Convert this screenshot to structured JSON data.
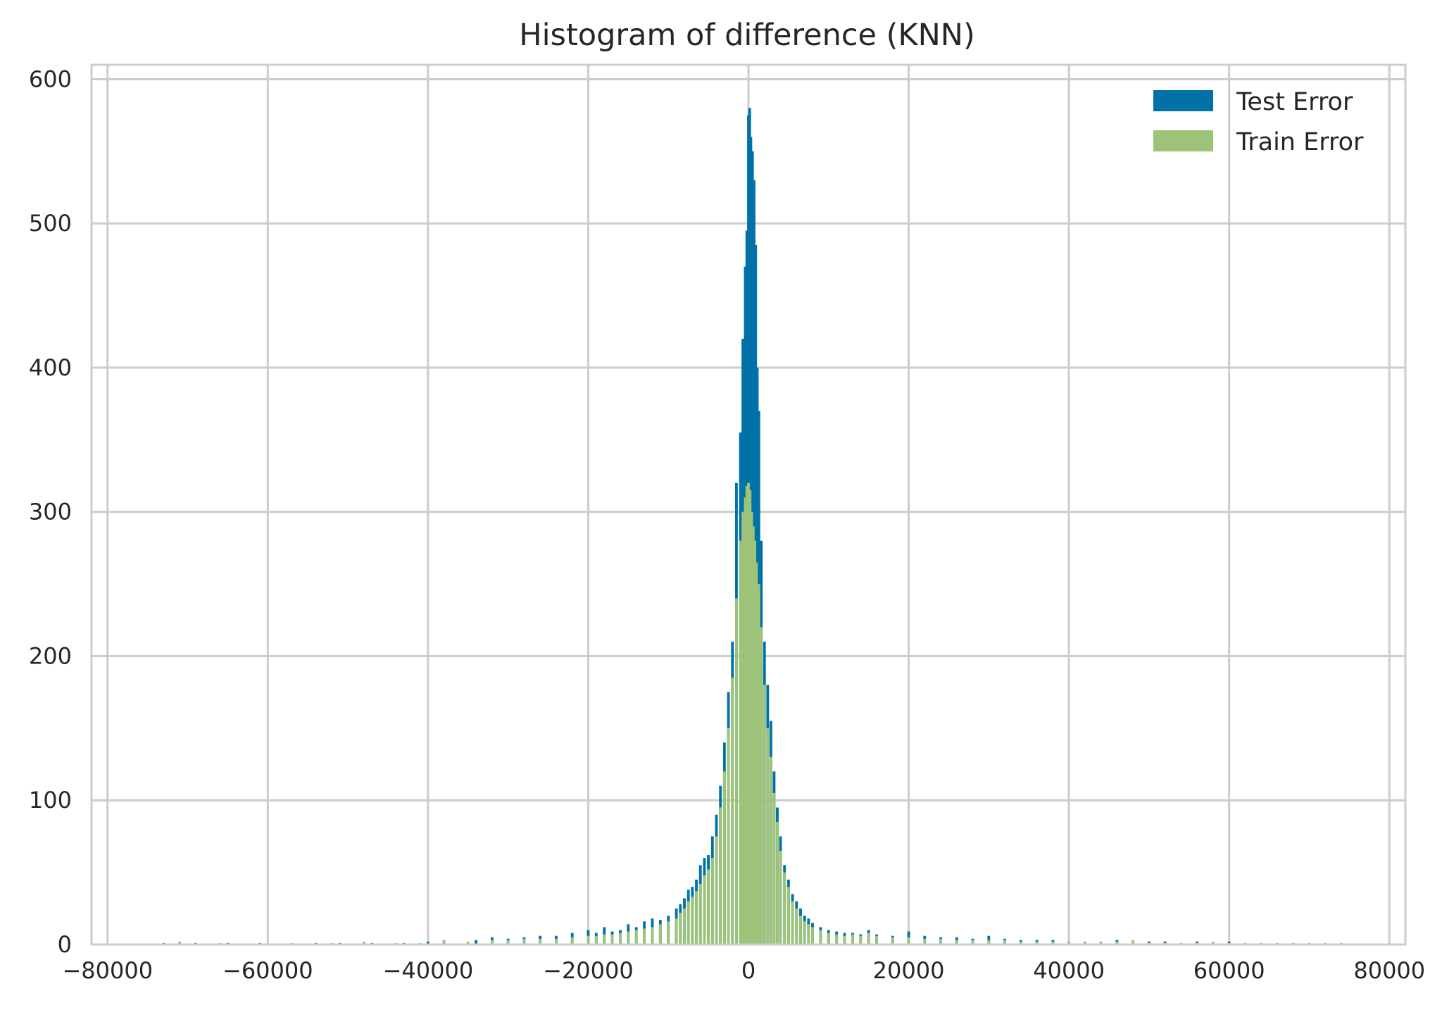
{
  "chart_data": {
    "type": "bar",
    "title": "Histogram of difference (KNN)",
    "xlabel": "",
    "ylabel": "",
    "xlim": [
      -82000,
      82000
    ],
    "ylim": [
      0,
      610
    ],
    "x_ticks": [
      -80000,
      -60000,
      -40000,
      -20000,
      0,
      20000,
      40000,
      60000,
      80000
    ],
    "x_tick_labels": [
      "−80000",
      "−60000",
      "−40000",
      "−20000",
      "0",
      "20000",
      "40000",
      "60000",
      "80000"
    ],
    "y_ticks": [
      0,
      100,
      200,
      300,
      400,
      500,
      600
    ],
    "y_tick_labels": [
      "0",
      "100",
      "200",
      "300",
      "400",
      "500",
      "600"
    ],
    "grid": true,
    "legend_position": "top-right",
    "series": [
      {
        "name": "Test Error",
        "color": "#0072a7",
        "points": [
          [
            -73000,
            1
          ],
          [
            -69000,
            1
          ],
          [
            -65000,
            1
          ],
          [
            -61000,
            1
          ],
          [
            -54000,
            1
          ],
          [
            -51000,
            1
          ],
          [
            -47000,
            1
          ],
          [
            -43000,
            1
          ],
          [
            -40000,
            2
          ],
          [
            -38000,
            3
          ],
          [
            -34000,
            3
          ],
          [
            -32000,
            5
          ],
          [
            -30000,
            4
          ],
          [
            -28000,
            5
          ],
          [
            -26000,
            6
          ],
          [
            -24000,
            6
          ],
          [
            -22000,
            8
          ],
          [
            -20000,
            10
          ],
          [
            -19000,
            8
          ],
          [
            -18000,
            12
          ],
          [
            -17000,
            9
          ],
          [
            -16000,
            10
          ],
          [
            -15000,
            14
          ],
          [
            -14000,
            12
          ],
          [
            -13000,
            16
          ],
          [
            -12000,
            18
          ],
          [
            -11000,
            17
          ],
          [
            -10000,
            20
          ],
          [
            -9000,
            25
          ],
          [
            -8500,
            28
          ],
          [
            -8000,
            32
          ],
          [
            -7500,
            38
          ],
          [
            -7000,
            40
          ],
          [
            -6500,
            45
          ],
          [
            -6000,
            55
          ],
          [
            -5500,
            60
          ],
          [
            -5000,
            62
          ],
          [
            -4500,
            75
          ],
          [
            -4000,
            90
          ],
          [
            -3500,
            110
          ],
          [
            -3000,
            140
          ],
          [
            -2500,
            175
          ],
          [
            -2000,
            210
          ],
          [
            -1500,
            320
          ],
          [
            -1000,
            355
          ],
          [
            -700,
            420
          ],
          [
            -400,
            470
          ],
          [
            -200,
            495
          ],
          [
            0,
            575
          ],
          [
            150,
            580
          ],
          [
            300,
            560
          ],
          [
            500,
            550
          ],
          [
            700,
            530
          ],
          [
            900,
            485
          ],
          [
            1100,
            400
          ],
          [
            1300,
            370
          ],
          [
            1600,
            280
          ],
          [
            2000,
            210
          ],
          [
            2400,
            180
          ],
          [
            2800,
            155
          ],
          [
            3200,
            120
          ],
          [
            3600,
            95
          ],
          [
            4000,
            75
          ],
          [
            4500,
            55
          ],
          [
            5000,
            45
          ],
          [
            5500,
            35
          ],
          [
            6000,
            30
          ],
          [
            6500,
            25
          ],
          [
            7000,
            20
          ],
          [
            7500,
            18
          ],
          [
            8000,
            15
          ],
          [
            9000,
            12
          ],
          [
            10000,
            10
          ],
          [
            11000,
            9
          ],
          [
            12000,
            8
          ],
          [
            13000,
            8
          ],
          [
            14000,
            7
          ],
          [
            15000,
            10
          ],
          [
            16000,
            7
          ],
          [
            18000,
            6
          ],
          [
            20000,
            9
          ],
          [
            22000,
            6
          ],
          [
            24000,
            5
          ],
          [
            26000,
            5
          ],
          [
            28000,
            4
          ],
          [
            30000,
            6
          ],
          [
            32000,
            4
          ],
          [
            34000,
            3
          ],
          [
            36000,
            3
          ],
          [
            38000,
            3
          ],
          [
            40000,
            2
          ],
          [
            42000,
            2
          ],
          [
            44000,
            2
          ],
          [
            46000,
            3
          ],
          [
            48000,
            2
          ],
          [
            50000,
            2
          ],
          [
            52000,
            2
          ],
          [
            54000,
            1
          ],
          [
            56000,
            2
          ],
          [
            58000,
            1
          ],
          [
            60000,
            2
          ],
          [
            62000,
            1
          ],
          [
            64000,
            1
          ],
          [
            66000,
            1
          ],
          [
            68000,
            1
          ],
          [
            70000,
            1
          ],
          [
            72000,
            1
          ],
          [
            74000,
            1
          ]
        ]
      },
      {
        "name": "Train Error",
        "color": "#9dc378",
        "points": [
          [
            -71000,
            2
          ],
          [
            -66000,
            1
          ],
          [
            -57000,
            1
          ],
          [
            -52000,
            1
          ],
          [
            -48000,
            2
          ],
          [
            -44000,
            1
          ],
          [
            -41000,
            1
          ],
          [
            -38000,
            3
          ],
          [
            -35000,
            2
          ],
          [
            -32000,
            3
          ],
          [
            -30000,
            3
          ],
          [
            -28000,
            4
          ],
          [
            -26000,
            4
          ],
          [
            -24000,
            4
          ],
          [
            -22000,
            5
          ],
          [
            -20000,
            6
          ],
          [
            -19000,
            6
          ],
          [
            -18000,
            7
          ],
          [
            -17000,
            7
          ],
          [
            -16000,
            8
          ],
          [
            -15000,
            9
          ],
          [
            -14000,
            10
          ],
          [
            -13000,
            11
          ],
          [
            -12000,
            12
          ],
          [
            -11000,
            14
          ],
          [
            -10000,
            16
          ],
          [
            -9000,
            18
          ],
          [
            -8500,
            22
          ],
          [
            -8000,
            25
          ],
          [
            -7500,
            30
          ],
          [
            -7000,
            33
          ],
          [
            -6500,
            37
          ],
          [
            -6000,
            42
          ],
          [
            -5500,
            48
          ],
          [
            -5000,
            52
          ],
          [
            -4500,
            60
          ],
          [
            -4000,
            75
          ],
          [
            -3500,
            95
          ],
          [
            -3000,
            120
          ],
          [
            -2500,
            150
          ],
          [
            -2000,
            185
          ],
          [
            -1500,
            240
          ],
          [
            -1000,
            280
          ],
          [
            -700,
            300
          ],
          [
            -400,
            310
          ],
          [
            -200,
            318
          ],
          [
            0,
            320
          ],
          [
            200,
            315
          ],
          [
            400,
            300
          ],
          [
            600,
            290
          ],
          [
            800,
            280
          ],
          [
            1000,
            265
          ],
          [
            1300,
            250
          ],
          [
            1600,
            220
          ],
          [
            2000,
            180
          ],
          [
            2400,
            150
          ],
          [
            2800,
            130
          ],
          [
            3200,
            105
          ],
          [
            3600,
            85
          ],
          [
            4000,
            65
          ],
          [
            4500,
            50
          ],
          [
            5000,
            40
          ],
          [
            5500,
            30
          ],
          [
            6000,
            25
          ],
          [
            6500,
            20
          ],
          [
            7000,
            16
          ],
          [
            7500,
            14
          ],
          [
            8000,
            12
          ],
          [
            9000,
            10
          ],
          [
            10000,
            8
          ],
          [
            11000,
            7
          ],
          [
            12000,
            6
          ],
          [
            13000,
            7
          ],
          [
            14000,
            6
          ],
          [
            15000,
            8
          ],
          [
            16000,
            6
          ],
          [
            18000,
            5
          ],
          [
            20000,
            5
          ],
          [
            22000,
            4
          ],
          [
            24000,
            4
          ],
          [
            26000,
            3
          ],
          [
            28000,
            3
          ],
          [
            30000,
            3
          ],
          [
            32000,
            3
          ],
          [
            34000,
            2
          ],
          [
            36000,
            2
          ],
          [
            38000,
            2
          ],
          [
            40000,
            2
          ],
          [
            42000,
            2
          ],
          [
            44000,
            2
          ],
          [
            46000,
            2
          ],
          [
            48000,
            3
          ],
          [
            50000,
            1
          ],
          [
            52000,
            1
          ],
          [
            54000,
            1
          ],
          [
            56000,
            1
          ],
          [
            58000,
            2
          ],
          [
            60000,
            1
          ],
          [
            62000,
            1
          ],
          [
            64000,
            1
          ],
          [
            66000,
            1
          ],
          [
            68000,
            1
          ],
          [
            70000,
            1
          ],
          [
            72000,
            1
          ],
          [
            74000,
            1
          ]
        ]
      }
    ]
  }
}
